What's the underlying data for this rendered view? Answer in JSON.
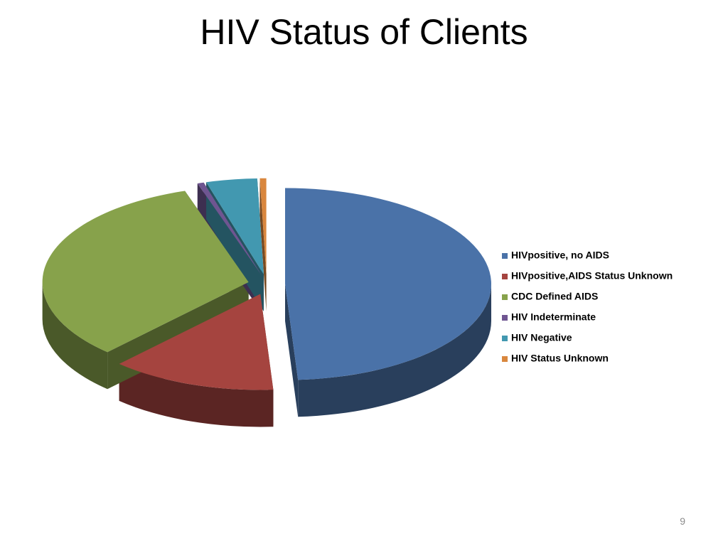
{
  "chart_data": {
    "type": "pie",
    "title": "HIV Status of Clients",
    "categories": [
      "HIVpositive, no AIDS",
      "HIVpositive,AIDS Status Unknown",
      "CDC Defined AIDS",
      "HIV Indeterminate",
      "HIV Negative",
      "HIV Status Unknown"
    ],
    "values": [
      49,
      13,
      33,
      0.5,
      4,
      0.5
    ],
    "colors": [
      "#4a72a8",
      "#a5443f",
      "#87a24b",
      "#6f5591",
      "#4298b0",
      "#d9873e"
    ],
    "legend": "right"
  },
  "page_number": "9"
}
